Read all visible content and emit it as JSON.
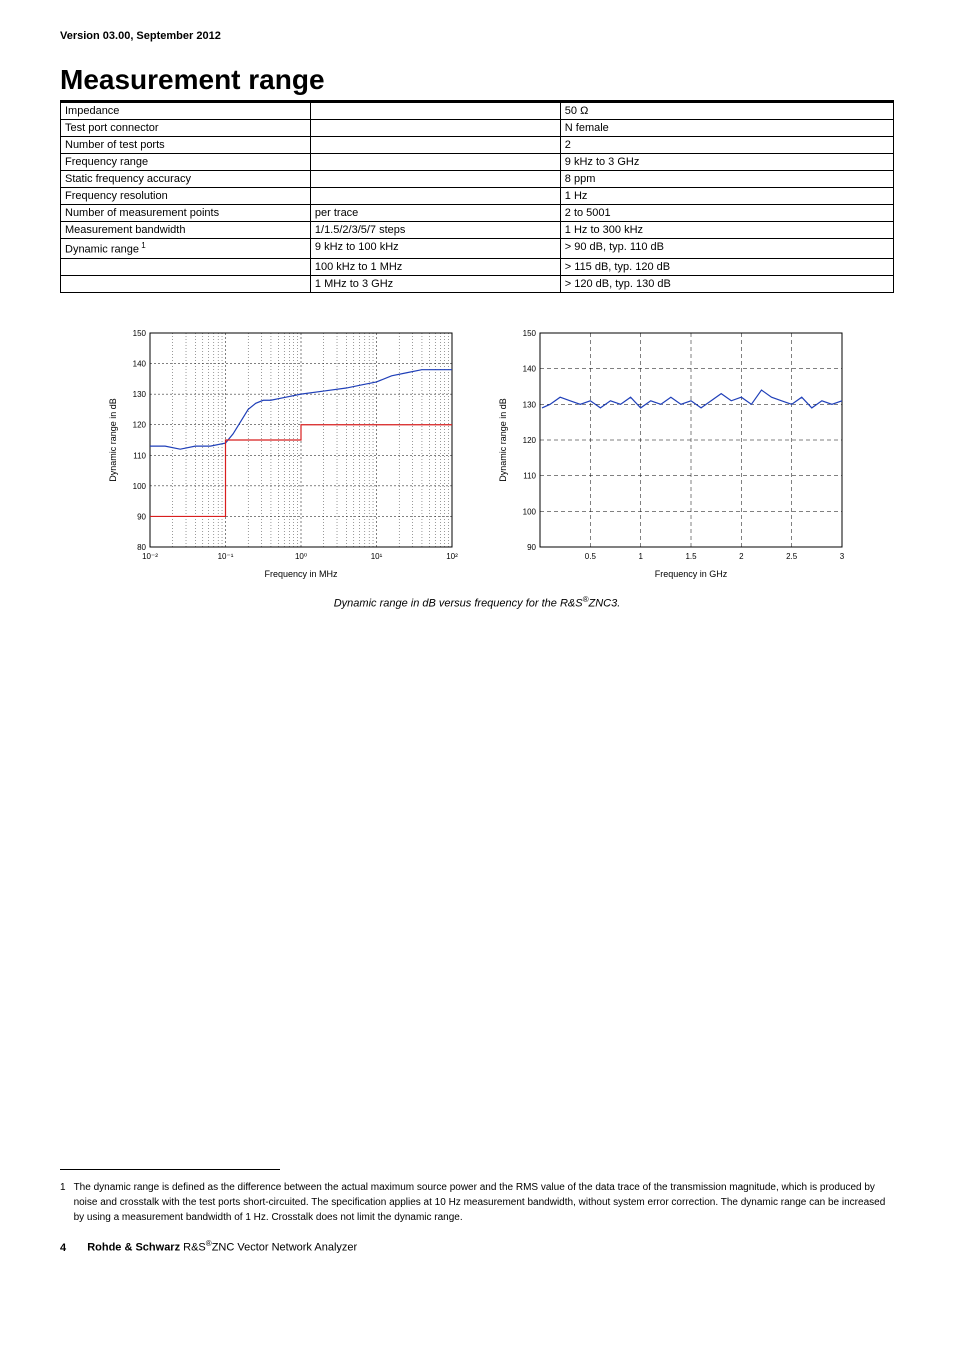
{
  "header": {
    "version": "Version 03.00, September 2012"
  },
  "title": "Measurement range",
  "table": {
    "rows": [
      {
        "c1": "Impedance",
        "c2": "",
        "c3": "50 Ω"
      },
      {
        "c1": "Test port connector",
        "c2": "",
        "c3": "N female"
      },
      {
        "c1": "Number of test ports",
        "c2": "",
        "c3": "2"
      },
      {
        "c1": "Frequency range",
        "c2": "",
        "c3": "9 kHz to 3 GHz"
      },
      {
        "c1": "Static frequency accuracy",
        "c2": "",
        "c3": "8 ppm"
      },
      {
        "c1": "Frequency resolution",
        "c2": "",
        "c3": "1 Hz"
      },
      {
        "c1": "Number of measurement points",
        "c2": "per trace",
        "c3": "2 to 5001"
      },
      {
        "c1": "Measurement bandwidth",
        "c2": "1/1.5/2/3/5/7 steps",
        "c3": "1 Hz to 300 kHz"
      },
      {
        "c1": "Dynamic range",
        "sup": "1",
        "c2": "9 kHz to 100 kHz",
        "c3": "> 90 dB, typ. 110 dB"
      },
      {
        "c1": "",
        "c2": "100 kHz to 1 MHz",
        "c3": "> 115 dB, typ. 120 dB"
      },
      {
        "c1": "",
        "c2": "1 MHz to 3 GHz",
        "c3": "> 120 dB, typ. 130 dB"
      }
    ]
  },
  "chart_left": {
    "type": "line-log-x",
    "xlabel": "Frequency in MHz",
    "ylabel": "Dynamic range in dB",
    "ylim": [
      80,
      150
    ],
    "ytick_step": 10,
    "x_decades": [
      -2,
      -1,
      0,
      1,
      2
    ],
    "x_tick_labels": [
      "10⁻²",
      "10⁻¹",
      "10⁰",
      "10¹",
      "10²"
    ],
    "axis_fontsize": 9,
    "tick_fontsize": 8,
    "grid_color": "#000000",
    "grid_dash": "2,2",
    "background": "#ffffff",
    "series": [
      {
        "name": "typ",
        "color": "#1f3fb8",
        "width": 1.2,
        "points": [
          [
            -2,
            113
          ],
          [
            -1.8,
            113
          ],
          [
            -1.6,
            112
          ],
          [
            -1.4,
            113
          ],
          [
            -1.2,
            113
          ],
          [
            -1.0,
            114
          ],
          [
            -0.9,
            117
          ],
          [
            -0.8,
            121
          ],
          [
            -0.7,
            125
          ],
          [
            -0.6,
            127
          ],
          [
            -0.5,
            128
          ],
          [
            -0.4,
            128
          ],
          [
            -0.2,
            129
          ],
          [
            0.0,
            130
          ],
          [
            0.3,
            131
          ],
          [
            0.6,
            132
          ],
          [
            0.8,
            133
          ],
          [
            1.0,
            134
          ],
          [
            1.2,
            136
          ],
          [
            1.4,
            137
          ],
          [
            1.6,
            138
          ],
          [
            1.8,
            138
          ],
          [
            2.0,
            138
          ]
        ]
      },
      {
        "name": "spec",
        "color": "#d81e1e",
        "width": 1.2,
        "points": [
          [
            -2,
            90
          ],
          [
            -1,
            90
          ],
          [
            -1,
            115
          ],
          [
            0,
            115
          ],
          [
            0,
            120
          ],
          [
            2,
            120
          ]
        ]
      }
    ]
  },
  "chart_right": {
    "type": "line",
    "xlabel": "Frequency in GHz",
    "ylabel": "Dynamic range in dB",
    "ylim": [
      90,
      150
    ],
    "ytick_step": 10,
    "xlim": [
      0,
      3
    ],
    "xtick_step": 0.5,
    "x_tick_labels": [
      "",
      "0.5",
      "1",
      "1.5",
      "2",
      "2.5",
      "3"
    ],
    "axis_fontsize": 9,
    "tick_fontsize": 8,
    "grid_color": "#000000",
    "grid_dash": "4,3",
    "background": "#ffffff",
    "series": [
      {
        "name": "typ",
        "color": "#1f3fb8",
        "width": 1.2,
        "points": [
          [
            0.02,
            129
          ],
          [
            0.1,
            130
          ],
          [
            0.2,
            132
          ],
          [
            0.3,
            131
          ],
          [
            0.4,
            130
          ],
          [
            0.5,
            131
          ],
          [
            0.6,
            129
          ],
          [
            0.7,
            131
          ],
          [
            0.8,
            130
          ],
          [
            0.9,
            132
          ],
          [
            1.0,
            129
          ],
          [
            1.1,
            131
          ],
          [
            1.2,
            130
          ],
          [
            1.3,
            132
          ],
          [
            1.4,
            130
          ],
          [
            1.5,
            131
          ],
          [
            1.6,
            129
          ],
          [
            1.7,
            131
          ],
          [
            1.8,
            133
          ],
          [
            1.9,
            131
          ],
          [
            2.0,
            132
          ],
          [
            2.1,
            130
          ],
          [
            2.2,
            134
          ],
          [
            2.3,
            132
          ],
          [
            2.4,
            131
          ],
          [
            2.5,
            130
          ],
          [
            2.6,
            132
          ],
          [
            2.7,
            129
          ],
          [
            2.8,
            131
          ],
          [
            2.9,
            130
          ],
          [
            3.0,
            131
          ]
        ]
      }
    ]
  },
  "caption": {
    "pre": "Dynamic range in dB versus frequency for the R&S",
    "post": "ZNC3."
  },
  "footnote": {
    "num": "1",
    "text": "The dynamic range is defined as the difference between the actual maximum source power and the RMS value of the data trace of the transmission magnitude, which is produced by noise and crosstalk with the test ports short-circuited. The specification applies at 10 Hz measurement bandwidth, without system error correction. The dynamic range can be increased by using a measurement bandwidth of 1 Hz. Crosstalk does not limit the dynamic range."
  },
  "footer": {
    "page": "4",
    "brand": "Rohde & Schwarz",
    "product_pre": " R&S",
    "product_post": "ZNC Vector Network Analyzer"
  }
}
